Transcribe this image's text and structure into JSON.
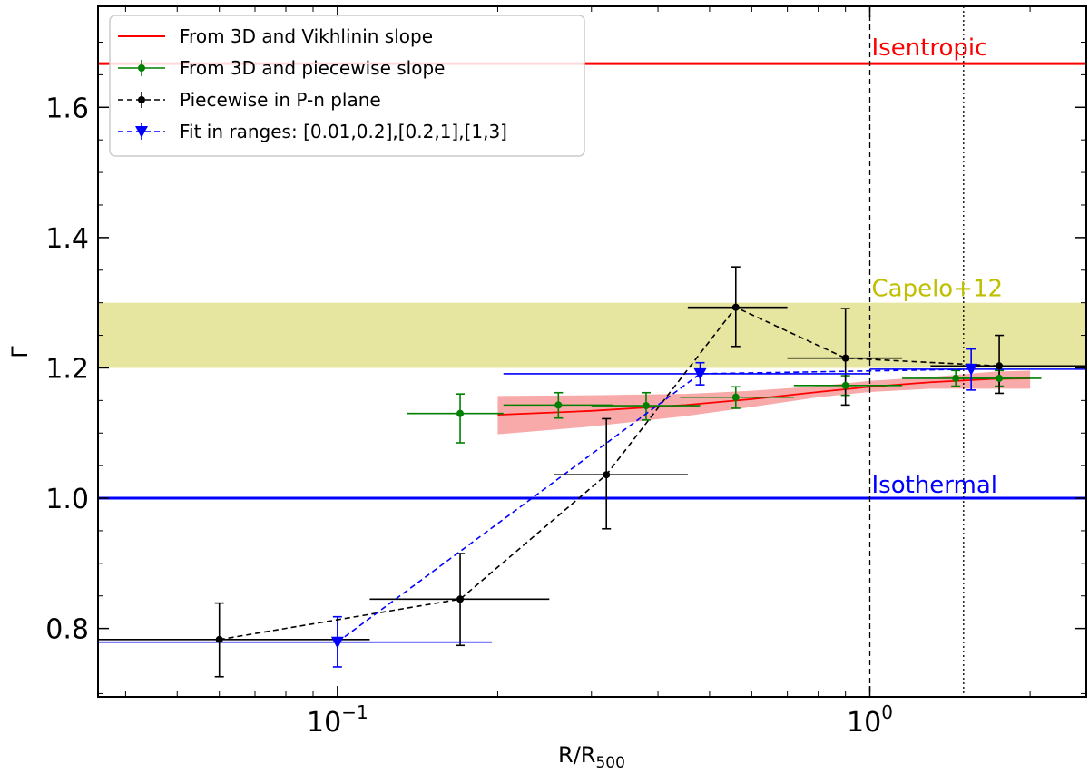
{
  "chart_data": {
    "type": "line",
    "xscale": "log",
    "xlim": [
      0.0355,
      2.55
    ],
    "ylim": [
      0.695,
      1.755
    ],
    "xlabel": "R/R",
    "xlabel_sub": "500",
    "ylabel": "Γ",
    "x_ticks": [
      {
        "value": 0.1,
        "base": "10",
        "exp": "−1"
      },
      {
        "value": 1,
        "base": "10",
        "exp": "0"
      }
    ],
    "y_ticks": [
      {
        "value": 0.8,
        "label": "0.8"
      },
      {
        "value": 1.0,
        "label": "1.0"
      },
      {
        "value": 1.2,
        "label": "1.2"
      },
      {
        "value": 1.4,
        "label": "1.4"
      },
      {
        "value": 1.6,
        "label": "1.6"
      }
    ],
    "legend_position": "top-left",
    "legend": [
      {
        "label": "From 3D and Vikhlinin slope",
        "color": "#ff0000",
        "style": "line"
      },
      {
        "label": "From 3D and piecewise slope",
        "color": "#008000",
        "style": "errorbar-dot"
      },
      {
        "label": "Piecewise in P-n plane",
        "color": "#000000",
        "style": "dashed-dot"
      },
      {
        "label": "Fit in ranges: [0.01,0.2],[0.2,1],[1,3]",
        "color": "#0000ff",
        "style": "dashed-triangle"
      }
    ],
    "reference_lines": [
      {
        "name": "Isentropic",
        "y": 1.667,
        "color": "#ff0000",
        "label": "Isentropic"
      },
      {
        "name": "Isothermal",
        "y": 1.0,
        "color": "#0000ff",
        "label": "Isothermal"
      }
    ],
    "band": {
      "label": "Capelo+12",
      "y_low": 1.2,
      "y_high": 1.3,
      "color": "#e6e6a0",
      "label_color": "#bfbf00"
    },
    "vertical_lines": [
      {
        "x": 1.0,
        "style": "dashed"
      },
      {
        "x": 1.5,
        "style": "dotted"
      }
    ],
    "series": [
      {
        "name": "From 3D and Vikhlinin slope",
        "color": "#ff0000",
        "kind": "curve",
        "x": [
          0.2,
          0.3,
          0.45,
          0.6,
          0.8,
          1.0,
          1.3,
          1.7,
          2.0
        ],
        "y": [
          1.128,
          1.134,
          1.143,
          1.152,
          1.163,
          1.171,
          1.178,
          1.183,
          1.184
        ],
        "band_low": [
          1.098,
          1.11,
          1.126,
          1.14,
          1.155,
          1.163,
          1.168,
          1.168,
          1.168
        ],
        "band_high": [
          1.157,
          1.158,
          1.16,
          1.165,
          1.172,
          1.18,
          1.186,
          1.194,
          1.196
        ],
        "band_color": "#f8aaaa"
      },
      {
        "name": "From 3D and piecewise slope",
        "color": "#008000",
        "kind": "errorbar",
        "points": [
          {
            "x": 0.17,
            "y": 1.13,
            "xlo": 0.135,
            "xhi": 0.205,
            "ylo": 1.085,
            "yhi": 1.16
          },
          {
            "x": 0.26,
            "y": 1.143,
            "xlo": 0.205,
            "xhi": 0.33,
            "ylo": 1.123,
            "yhi": 1.162
          },
          {
            "x": 0.38,
            "y": 1.142,
            "xlo": 0.3,
            "xhi": 0.48,
            "ylo": 1.12,
            "yhi": 1.162
          },
          {
            "x": 0.56,
            "y": 1.155,
            "xlo": 0.44,
            "xhi": 0.72,
            "ylo": 1.138,
            "yhi": 1.171
          },
          {
            "x": 0.9,
            "y": 1.173,
            "xlo": 0.72,
            "xhi": 1.15,
            "ylo": 1.158,
            "yhi": 1.188
          },
          {
            "x": 1.45,
            "y": 1.184,
            "xlo": 1.15,
            "xhi": 1.85,
            "ylo": 1.172,
            "yhi": 1.196
          },
          {
            "x": 1.75,
            "y": 1.184,
            "xlo": 1.45,
            "xhi": 2.1,
            "ylo": 1.172,
            "yhi": 1.196
          }
        ]
      },
      {
        "name": "Piecewise in P-n plane",
        "color": "#000000",
        "kind": "errorbar-dashed",
        "points": [
          {
            "x": 0.06,
            "y": 0.783,
            "xlo": 0.035,
            "xhi": 0.115,
            "ylo": 0.726,
            "yhi": 0.839
          },
          {
            "x": 0.17,
            "y": 0.845,
            "xlo": 0.115,
            "xhi": 0.25,
            "ylo": 0.774,
            "yhi": 0.915
          },
          {
            "x": 0.32,
            "y": 1.036,
            "xlo": 0.255,
            "xhi": 0.455,
            "ylo": 0.953,
            "yhi": 1.122
          },
          {
            "x": 0.56,
            "y": 1.293,
            "xlo": 0.455,
            "xhi": 0.7,
            "ylo": 1.233,
            "yhi": 1.355
          },
          {
            "x": 0.9,
            "y": 1.215,
            "xlo": 0.7,
            "xhi": 1.15,
            "ylo": 1.143,
            "yhi": 1.291
          },
          {
            "x": 1.75,
            "y": 1.203,
            "xlo": 1.3,
            "xhi": 2.55,
            "ylo": 1.161,
            "yhi": 1.25
          }
        ]
      },
      {
        "name": "Fit in ranges: [0.01,0.2],[0.2,1],[1,3]",
        "color": "#0000ff",
        "kind": "errorbar-dashed-triangle",
        "points": [
          {
            "x": 0.1,
            "y": 0.779,
            "xlo": 0.035,
            "xhi": 0.195,
            "ylo": 0.741,
            "yhi": 0.818
          },
          {
            "x": 0.48,
            "y": 1.191,
            "xlo": 0.205,
            "xhi": 1.0,
            "ylo": 1.174,
            "yhi": 1.208
          },
          {
            "x": 1.55,
            "y": 1.198,
            "xlo": 1.0,
            "xhi": 2.55,
            "ylo": 1.166,
            "yhi": 1.229
          }
        ]
      }
    ]
  }
}
